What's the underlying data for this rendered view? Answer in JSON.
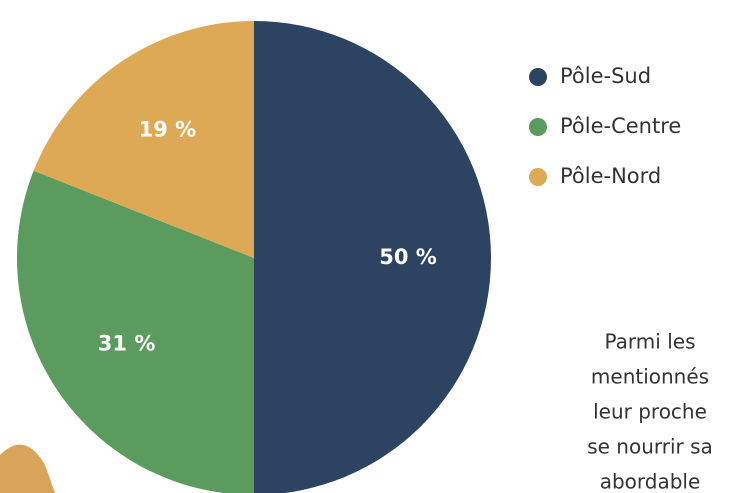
{
  "chart_data": {
    "type": "pie",
    "categories": [
      "Pôle-Sud",
      "Pôle-Centre",
      "Pôle-Nord"
    ],
    "values": [
      50,
      31,
      19
    ],
    "value_labels": [
      "50 %",
      "31 %",
      "19 %"
    ],
    "colors": [
      "#2c4361",
      "#5b9b5d",
      "#dda955"
    ],
    "legend": "right",
    "annotation_lines": [
      "Parmi les",
      "mentionnés",
      "leur proche",
      "se nourrir sa",
      "abordable"
    ]
  }
}
